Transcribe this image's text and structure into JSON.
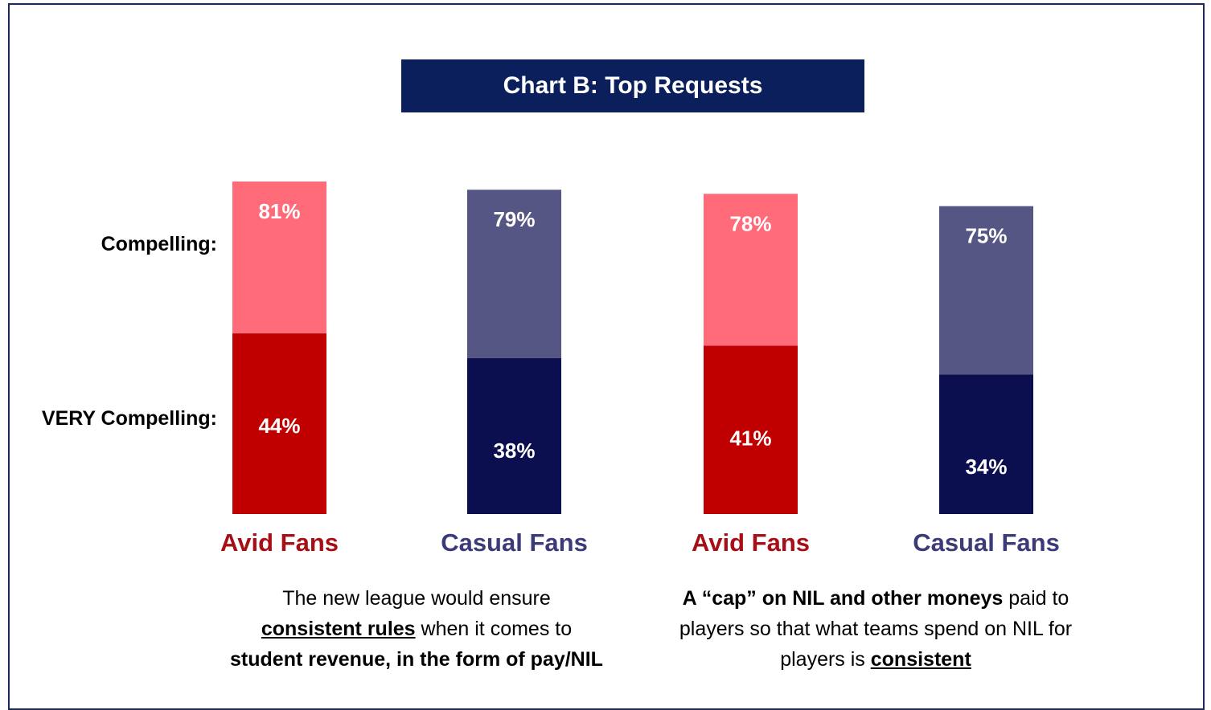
{
  "chart_data": {
    "type": "bar",
    "title": "Chart B: Top Requests",
    "row_labels": {
      "compelling": "Compelling:",
      "very_compelling": "VERY Compelling:"
    },
    "categories": [
      "Avid Fans",
      "Casual Fans",
      "Avid Fans",
      "Casual Fans"
    ],
    "series": [
      {
        "name": "Compelling",
        "values": [
          81,
          79,
          78,
          75
        ]
      },
      {
        "name": "VERY Compelling",
        "values": [
          44,
          38,
          41,
          34
        ]
      }
    ],
    "value_labels": {
      "compelling": [
        "81%",
        "79%",
        "78%",
        "75%"
      ],
      "very_compelling": [
        "44%",
        "38%",
        "41%",
        "34%"
      ]
    },
    "colors": {
      "avid_light": "#ff6b78",
      "avid_dark": "#c00000",
      "casual_light": "#565685",
      "casual_dark": "#0b0f4f",
      "avid_label": "#a50f15",
      "casual_label": "#3b3b78",
      "title_bg": "#0a1f5c"
    },
    "ylim": [
      0,
      100
    ],
    "grid": false
  },
  "captions": {
    "left": {
      "part1": "The new league would ensure",
      "part2_bold_underline": "consistent rules",
      "part3": " when it comes to",
      "part4_bold": "student revenue, in the form of pay/NIL"
    },
    "right": {
      "part1_bold": "A “cap” on NIL and other moneys",
      "part2": " paid to players so that what teams spend on NIL for players is ",
      "part3_bold_underline": "consistent"
    }
  }
}
